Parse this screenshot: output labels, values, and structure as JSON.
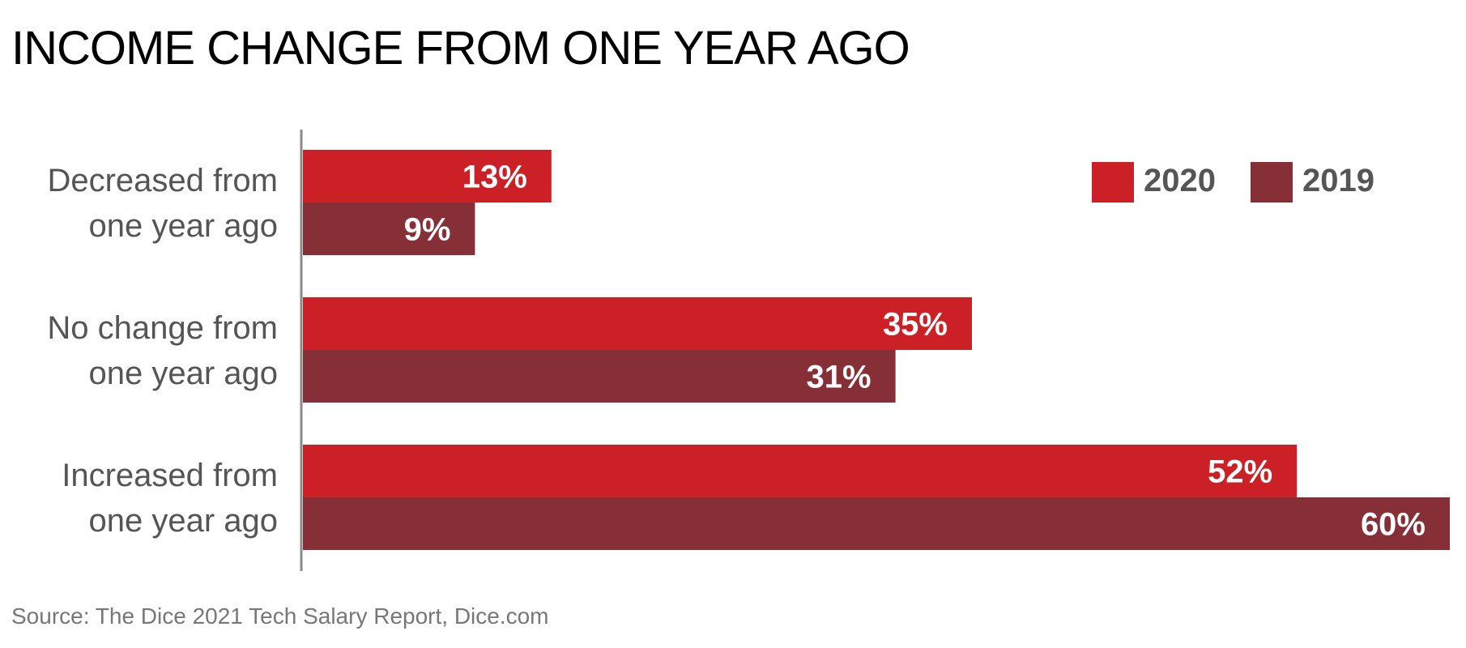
{
  "chart_data": {
    "type": "bar",
    "orientation": "horizontal",
    "title": "INCOME CHANGE FROM ONE YEAR AGO",
    "categories": [
      [
        "Decreased from",
        "one year ago"
      ],
      [
        "No change from",
        "one year ago"
      ],
      [
        "Increased from",
        "one year ago"
      ]
    ],
    "series": [
      {
        "name": "2020",
        "color": "#cc2027",
        "values": [
          13,
          35,
          52
        ],
        "labels": [
          "13%",
          "35%",
          "52%"
        ]
      },
      {
        "name": "2019",
        "color": "#862f37",
        "values": [
          9,
          31,
          60
        ],
        "labels": [
          "9%",
          "31%",
          "60%"
        ]
      }
    ],
    "xlim": [
      0,
      60
    ],
    "value_unit": "%",
    "legend": "top-right",
    "grid": false,
    "source": "Source: The Dice 2021 Tech Salary Report, Dice.com"
  }
}
